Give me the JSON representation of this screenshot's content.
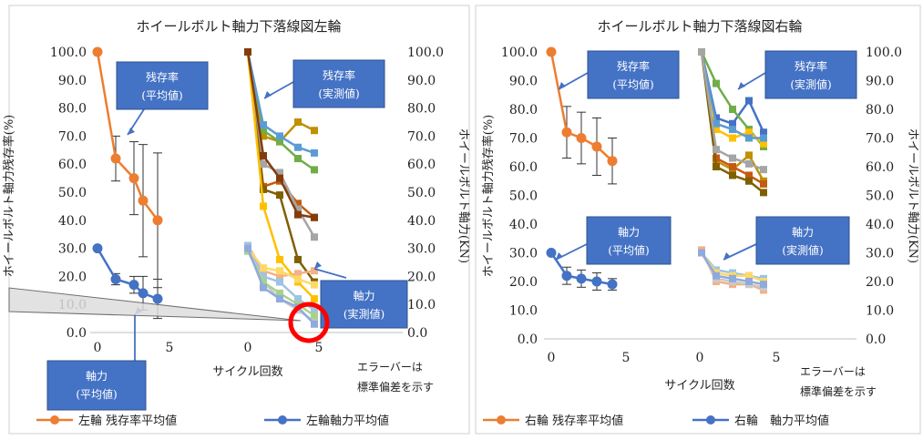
{
  "chart_data": [
    {
      "type": "line",
      "title": "ホイールボルト軸力下落線図左輪",
      "ylabel_left": "ホイールボルト軸力残存率(%)",
      "ylabel_right": "ホイールボルト軸力(KN)",
      "xlabel": "サイクル回数",
      "ylim": [
        0,
        100
      ],
      "xticks": [
        "0",
        "5",
        "0",
        "5"
      ],
      "yticks_left": [
        "0.0",
        "10.0",
        "20.0",
        "30.0",
        "40.0",
        "50.0",
        "60.0",
        "70.0",
        "80.0",
        "90.0",
        "100.0"
      ],
      "yticks_right": [
        "0.0",
        "10.0",
        "20.0",
        "30.0",
        "40.0",
        "50.0",
        "60.0",
        "70.0",
        "80.0",
        "90.0",
        "100.0"
      ],
      "series": [
        {
          "name": "左輪 残存率平均値",
          "color": "#ed7d31",
          "x": [
            0,
            1,
            2,
            3,
            4
          ],
          "y": [
            100,
            62,
            55,
            47,
            40
          ],
          "err": [
            0,
            8,
            13,
            20,
            24
          ]
        },
        {
          "name": "左輪軸力平均値",
          "color": "#4472c4",
          "x": [
            0,
            1,
            2,
            3,
            4
          ],
          "y": [
            30,
            19,
            17,
            14,
            12
          ],
          "err": [
            0,
            2,
            3,
            6,
            7
          ]
        }
      ],
      "measured_retention": [
        {
          "color": "#c55a11",
          "y": [
            100,
            52,
            54,
            46,
            41
          ]
        },
        {
          "color": "#7f6000",
          "y": [
            100,
            51,
            49,
            26,
            18
          ]
        },
        {
          "color": "#bf9000",
          "y": [
            100,
            70,
            68,
            75,
            72
          ]
        },
        {
          "color": "#70ad47",
          "y": [
            100,
            72,
            68,
            62,
            58
          ]
        },
        {
          "color": "#5b9bd5",
          "y": [
            100,
            74,
            70,
            66,
            64
          ]
        },
        {
          "color": "#a5a5a5",
          "y": [
            100,
            60,
            57,
            44,
            34
          ]
        },
        {
          "color": "#ffc000",
          "y": [
            100,
            45,
            26,
            18,
            12
          ]
        },
        {
          "color": "#843c0c",
          "y": [
            100,
            63,
            55,
            42,
            41
          ]
        }
      ],
      "measured_force": [
        {
          "color": "#f4b183",
          "y": [
            31,
            22,
            20,
            21,
            22
          ]
        },
        {
          "color": "#9dc3e6",
          "y": [
            31,
            20,
            18,
            12,
            8
          ]
        },
        {
          "color": "#c9c9c9",
          "y": [
            30,
            18,
            12,
            8,
            4
          ]
        },
        {
          "color": "#ffd966",
          "y": [
            30,
            23,
            22,
            19,
            17
          ]
        },
        {
          "color": "#a9d18e",
          "y": [
            29,
            18,
            14,
            10,
            6
          ]
        },
        {
          "color": "#8faadc",
          "y": [
            30,
            16,
            12,
            9,
            3
          ]
        }
      ],
      "legend": [
        "左輪 残存率平均値",
        "左輪軸力平均値"
      ],
      "callouts": {
        "c1": [
          "残存率",
          "(平均値)"
        ],
        "c2": [
          "残存率",
          "(実測値)"
        ],
        "c3": [
          "軸力",
          "(実測値)"
        ],
        "c4": [
          "軸力",
          "(平均値)"
        ]
      },
      "note": [
        "エラーバーは",
        "標準偏差を示す"
      ]
    },
    {
      "type": "line",
      "title": "ホイールボルト軸力下落線図右輪",
      "ylabel_left": "ホイールボルト軸力残存率(%)",
      "ylabel_right": "ホイールボルト軸力(KN)",
      "xlabel": "サイクル回数",
      "ylim": [
        0,
        100
      ],
      "xticks": [
        "0",
        "5",
        "0",
        "5"
      ],
      "yticks_left": [
        "0.0",
        "10.0",
        "20.0",
        "30.0",
        "40.0",
        "50.0",
        "60.0",
        "70.0",
        "80.0",
        "90.0",
        "100.0"
      ],
      "yticks_right": [
        "0.0",
        "10.0",
        "20.0",
        "30.0",
        "40.0",
        "50.0",
        "60.0",
        "70.0",
        "80.0",
        "90.0",
        "100.0"
      ],
      "series": [
        {
          "name": "右輪 残存率平均値",
          "color": "#ed7d31",
          "x": [
            0,
            1,
            2,
            3,
            4
          ],
          "y": [
            100,
            72,
            70,
            67,
            62
          ],
          "err": [
            0,
            9,
            9,
            10,
            8
          ]
        },
        {
          "name": "右輪　軸力平均値",
          "color": "#4472c4",
          "x": [
            0,
            1,
            2,
            3,
            4
          ],
          "y": [
            30,
            22,
            21,
            20,
            19
          ],
          "err": [
            0,
            3,
            3,
            3,
            2
          ]
        }
      ],
      "measured_retention": [
        {
          "color": "#4472c4",
          "y": [
            100,
            77,
            75,
            83,
            72
          ]
        },
        {
          "color": "#70ad47",
          "y": [
            100,
            89,
            80,
            73,
            67
          ]
        },
        {
          "color": "#ffc000",
          "y": [
            100,
            73,
            70,
            72,
            68
          ]
        },
        {
          "color": "#5b9bd5",
          "y": [
            100,
            75,
            73,
            70,
            70
          ]
        },
        {
          "color": "#bf9000",
          "y": [
            100,
            62,
            59,
            64,
            55
          ]
        },
        {
          "color": "#c55a11",
          "y": [
            100,
            63,
            60,
            57,
            54
          ]
        },
        {
          "color": "#7f6000",
          "y": [
            100,
            60,
            57,
            55,
            51
          ]
        },
        {
          "color": "#a5a5a5",
          "y": [
            100,
            66,
            63,
            61,
            59
          ]
        }
      ],
      "measured_force": [
        {
          "color": "#f4b183",
          "y": [
            31,
            20,
            19,
            19,
            17
          ]
        },
        {
          "color": "#9dc3e6",
          "y": [
            30,
            24,
            23,
            22,
            21
          ]
        },
        {
          "color": "#ffd966",
          "y": [
            30,
            23,
            22,
            22,
            20
          ]
        },
        {
          "color": "#c9c9c9",
          "y": [
            30,
            21,
            20,
            19,
            18
          ]
        },
        {
          "color": "#8faadc",
          "y": [
            30,
            22,
            21,
            20,
            19
          ]
        }
      ],
      "legend": [
        "右輪 残存率平均値",
        "右輪　軸力平均値"
      ],
      "callouts": {
        "c1": [
          "残存率",
          "(平均値)"
        ],
        "c2": [
          "残存率",
          "(実測値)"
        ],
        "c3": [
          "軸力",
          "(平均値)"
        ],
        "c4": [
          "軸力",
          "(実測値)"
        ]
      },
      "note": [
        "エラーバーは",
        "標準偏差を示す"
      ]
    }
  ],
  "colors": {
    "accent_orange": "#ed7d31",
    "accent_blue": "#4472c4",
    "callout_fill": "#4472c4",
    "highlight_circle": "#ff0000"
  }
}
